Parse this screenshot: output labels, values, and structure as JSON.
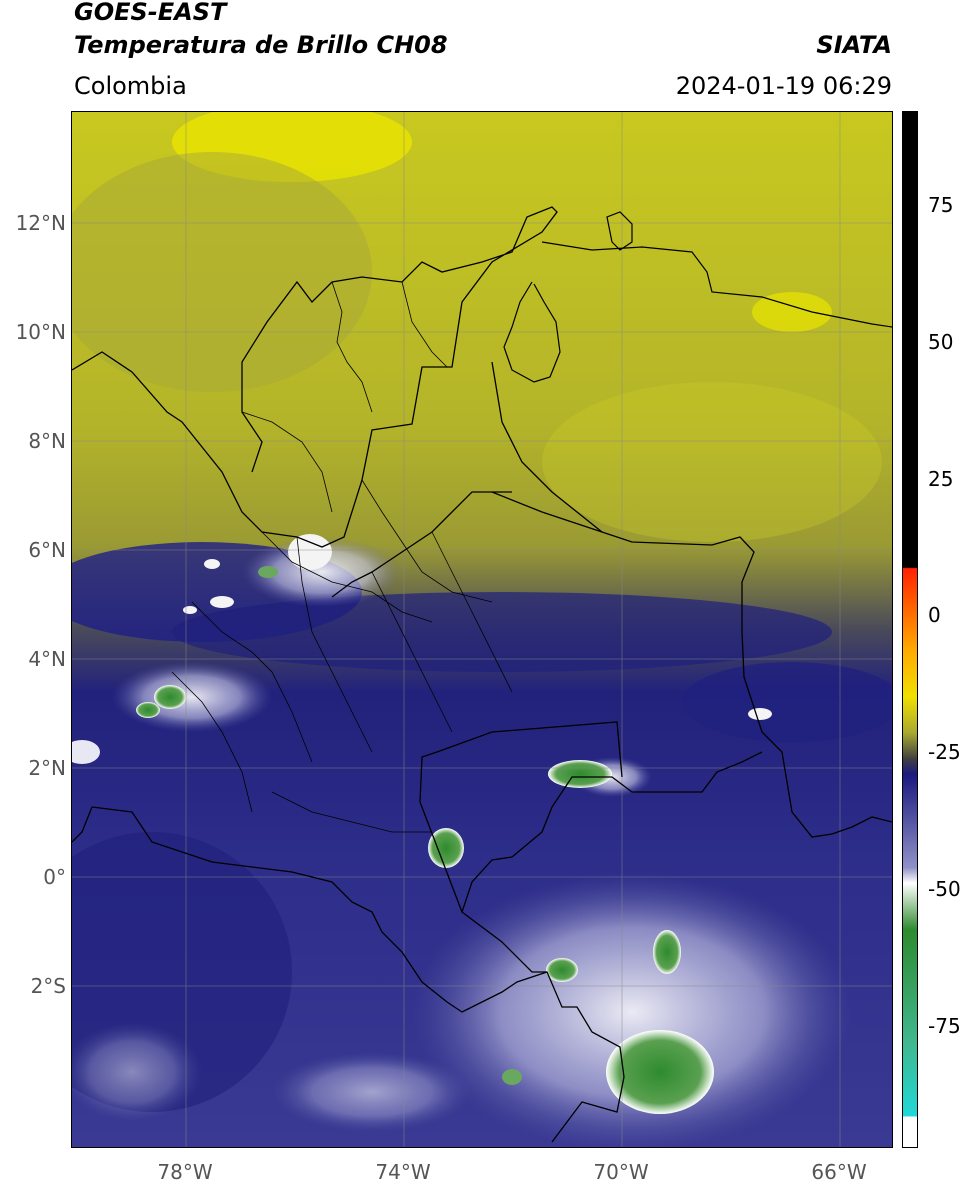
{
  "header": {
    "title_line1": "GOES-EAST",
    "title_line2": "Temperatura de Brillo CH08",
    "agency": "SIATA",
    "region": "Colombia",
    "datetime": "2024-01-19 06:29"
  },
  "map": {
    "lat_labels": [
      "12°N",
      "10°N",
      "8°N",
      "6°N",
      "4°N",
      "2°N",
      "0°",
      "2°S"
    ],
    "lon_labels": [
      "78°W",
      "74°W",
      "70°W",
      "66°W"
    ]
  },
  "colorbar": {
    "ticks": [
      "75",
      "50",
      "25",
      "0",
      "-25",
      "-50",
      "-75"
    ],
    "colors": {
      "warm_black": "#000000",
      "red": "#ff2200",
      "yellow": "#f0e000",
      "olive": "#a8a830",
      "blue": "#1a1a80",
      "white": "#ffffff",
      "green": "#2e8b2e",
      "cyan": "#20d8d8"
    }
  }
}
